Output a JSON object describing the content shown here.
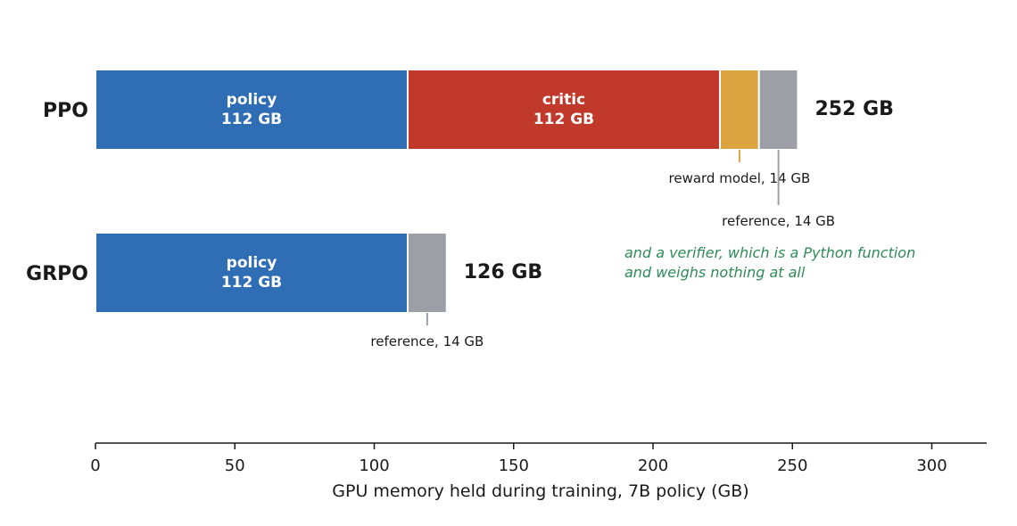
{
  "chart_data": {
    "type": "bar",
    "orientation": "horizontal",
    "stacked": true,
    "xlabel": "GPU memory held during training, 7B policy (GB)",
    "xlim": [
      0,
      320
    ],
    "xticks": [
      0,
      50,
      100,
      150,
      200,
      250,
      300
    ],
    "grid": false,
    "rows": [
      {
        "label": "PPO",
        "total_label": "252 GB",
        "segments": [
          {
            "component": "policy",
            "value": 112,
            "color": "#2f6db5",
            "name_label": "policy",
            "value_label": "112 GB",
            "annotation": ""
          },
          {
            "component": "critic",
            "value": 112,
            "color": "#c0392b",
            "name_label": "critic",
            "value_label": "112 GB",
            "annotation": ""
          },
          {
            "component": "reward model",
            "value": 14,
            "color": "#dba441",
            "name_label": "",
            "value_label": "",
            "annotation": "reward model, 14 GB",
            "annotation_color": "#dba441",
            "annotation_level": 1
          },
          {
            "component": "reference",
            "value": 14,
            "color": "#9ca0a6",
            "name_label": "",
            "value_label": "",
            "annotation": "reference, 14 GB",
            "annotation_color": "#9ca0a6",
            "annotation_level": 2
          }
        ]
      },
      {
        "label": "GRPO",
        "total_label": "126 GB",
        "segments": [
          {
            "component": "policy",
            "value": 112,
            "color": "#2f6db5",
            "name_label": "policy",
            "value_label": "112 GB",
            "annotation": ""
          },
          {
            "component": "reference",
            "value": 14,
            "color": "#9ca0a6",
            "name_label": "",
            "value_label": "",
            "annotation": "reference, 14 GB",
            "annotation_color": "#9ca0a6",
            "annotation_level": 1
          }
        ]
      }
    ],
    "note": {
      "lines": [
        "and a verifier, which is a Python function",
        "and weighs nothing at all"
      ],
      "color": "#2e8b57"
    }
  }
}
